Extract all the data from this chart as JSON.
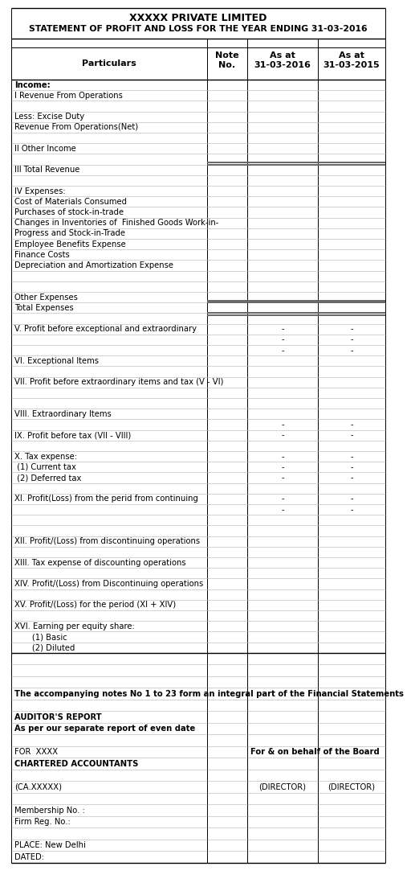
{
  "title1": "XXXXX PRIVATE LIMITED",
  "title2": "STATEMENT OF PROFIT AND LOSS FOR THE YEAR ENDING 31-03-2016",
  "rows": [
    {
      "text": "Income:",
      "bold": true,
      "c3": "",
      "c4": "",
      "dbl_above": false,
      "dbl_below": false
    },
    {
      "text": "I Revenue From Operations",
      "bold": false,
      "c3": "",
      "c4": "",
      "dbl_above": false,
      "dbl_below": false
    },
    {
      "text": "",
      "bold": false,
      "c3": "",
      "c4": "",
      "dbl_above": false,
      "dbl_below": false
    },
    {
      "text": "Less: Excise Duty",
      "bold": false,
      "c3": "",
      "c4": "",
      "dbl_above": false,
      "dbl_below": false
    },
    {
      "text": "Revenue From Operations(Net)",
      "bold": false,
      "c3": "",
      "c4": "",
      "dbl_above": false,
      "dbl_below": false
    },
    {
      "text": "",
      "bold": false,
      "c3": "",
      "c4": "",
      "dbl_above": false,
      "dbl_below": false
    },
    {
      "text": "II Other Income",
      "bold": false,
      "c3": "",
      "c4": "",
      "dbl_above": false,
      "dbl_below": false
    },
    {
      "text": "",
      "bold": false,
      "c3": "",
      "c4": "",
      "dbl_above": false,
      "dbl_below": false
    },
    {
      "text": "III Total Revenue",
      "bold": false,
      "c3": "",
      "c4": "",
      "dbl_above": true,
      "dbl_below": false
    },
    {
      "text": "",
      "bold": false,
      "c3": "",
      "c4": "",
      "dbl_above": false,
      "dbl_below": false
    },
    {
      "text": "IV Expenses:",
      "bold": false,
      "c3": "",
      "c4": "",
      "dbl_above": false,
      "dbl_below": false
    },
    {
      "text": "Cost of Materials Consumed",
      "bold": false,
      "c3": "",
      "c4": "",
      "dbl_above": false,
      "dbl_below": false
    },
    {
      "text": "Purchases of stock-in-trade",
      "bold": false,
      "c3": "",
      "c4": "",
      "dbl_above": false,
      "dbl_below": false
    },
    {
      "text": "Changes in Inventories of  Finished Goods Work-in-",
      "bold": false,
      "c3": "",
      "c4": "",
      "dbl_above": false,
      "dbl_below": false
    },
    {
      "text": "Progress and Stock-in-Trade",
      "bold": false,
      "c3": "",
      "c4": "",
      "dbl_above": false,
      "dbl_below": false
    },
    {
      "text": "Employee Benefits Expense",
      "bold": false,
      "c3": "",
      "c4": "",
      "dbl_above": false,
      "dbl_below": false
    },
    {
      "text": "Finance Costs",
      "bold": false,
      "c3": "",
      "c4": "",
      "dbl_above": false,
      "dbl_below": false
    },
    {
      "text": "Depreciation and Amortization Expense",
      "bold": false,
      "c3": "",
      "c4": "",
      "dbl_above": false,
      "dbl_below": false
    },
    {
      "text": "",
      "bold": false,
      "c3": "",
      "c4": "",
      "dbl_above": false,
      "dbl_below": false
    },
    {
      "text": "",
      "bold": false,
      "c3": "",
      "c4": "",
      "dbl_above": false,
      "dbl_below": false
    },
    {
      "text": "Other Expenses",
      "bold": false,
      "c3": "",
      "c4": "",
      "dbl_above": false,
      "dbl_below": false
    },
    {
      "text": "Total Expenses",
      "bold": false,
      "c3": "",
      "c4": "",
      "dbl_above": true,
      "dbl_below": true
    },
    {
      "text": "",
      "bold": false,
      "c3": "",
      "c4": "",
      "dbl_above": false,
      "dbl_below": false
    },
    {
      "text": "V. Profit before exceptional and extraordinary",
      "bold": false,
      "c3": "-",
      "c4": "-",
      "dbl_above": false,
      "dbl_below": false
    },
    {
      "text": "",
      "bold": false,
      "c3": "-",
      "c4": "-",
      "dbl_above": false,
      "dbl_below": false
    },
    {
      "text": "",
      "bold": false,
      "c3": "-",
      "c4": "-",
      "dbl_above": false,
      "dbl_below": false
    },
    {
      "text": "VI. Exceptional Items",
      "bold": false,
      "c3": "",
      "c4": "",
      "dbl_above": false,
      "dbl_below": false
    },
    {
      "text": "",
      "bold": false,
      "c3": "",
      "c4": "",
      "dbl_above": false,
      "dbl_below": false
    },
    {
      "text": "VII. Profit before extraordinary items and tax (V - VI)",
      "bold": false,
      "c3": "",
      "c4": "",
      "dbl_above": false,
      "dbl_below": false
    },
    {
      "text": "",
      "bold": false,
      "c3": "",
      "c4": "",
      "dbl_above": false,
      "dbl_below": false
    },
    {
      "text": "",
      "bold": false,
      "c3": "",
      "c4": "",
      "dbl_above": false,
      "dbl_below": false
    },
    {
      "text": "VIII. Extraordinary Items",
      "bold": false,
      "c3": "",
      "c4": "",
      "dbl_above": false,
      "dbl_below": false
    },
    {
      "text": "",
      "bold": false,
      "c3": "-",
      "c4": "-",
      "dbl_above": false,
      "dbl_below": false
    },
    {
      "text": "IX. Profit before tax (VII - VIII)",
      "bold": false,
      "c3": "-",
      "c4": "-",
      "dbl_above": false,
      "dbl_below": false
    },
    {
      "text": "",
      "bold": false,
      "c3": "",
      "c4": "",
      "dbl_above": false,
      "dbl_below": false
    },
    {
      "text": "X. Tax expense:",
      "bold": false,
      "c3": "-",
      "c4": "-",
      "dbl_above": false,
      "dbl_below": false
    },
    {
      "text": " (1) Current tax",
      "bold": false,
      "c3": "-",
      "c4": "-",
      "dbl_above": false,
      "dbl_below": false
    },
    {
      "text": " (2) Deferred tax",
      "bold": false,
      "c3": "-",
      "c4": "-",
      "dbl_above": false,
      "dbl_below": false
    },
    {
      "text": "",
      "bold": false,
      "c3": "",
      "c4": "",
      "dbl_above": false,
      "dbl_below": false
    },
    {
      "text": "XI. Profit(Loss) from the perid from continuing",
      "bold": false,
      "c3": "-",
      "c4": "-",
      "dbl_above": false,
      "dbl_below": false
    },
    {
      "text": "",
      "bold": false,
      "c3": "-",
      "c4": "-",
      "dbl_above": false,
      "dbl_below": false
    },
    {
      "text": "",
      "bold": false,
      "c3": "",
      "c4": "",
      "dbl_above": false,
      "dbl_below": false
    },
    {
      "text": "",
      "bold": false,
      "c3": "",
      "c4": "",
      "dbl_above": false,
      "dbl_below": false
    },
    {
      "text": "XII. Profit/(Loss) from discontinuing operations",
      "bold": false,
      "c3": "",
      "c4": "",
      "dbl_above": false,
      "dbl_below": false
    },
    {
      "text": "",
      "bold": false,
      "c3": "",
      "c4": "",
      "dbl_above": false,
      "dbl_below": false
    },
    {
      "text": "XIII. Tax expense of discounting operations",
      "bold": false,
      "c3": "",
      "c4": "",
      "dbl_above": false,
      "dbl_below": false
    },
    {
      "text": "",
      "bold": false,
      "c3": "",
      "c4": "",
      "dbl_above": false,
      "dbl_below": false
    },
    {
      "text": "XIV. Profit/(Loss) from Discontinuing operations",
      "bold": false,
      "c3": "",
      "c4": "",
      "dbl_above": false,
      "dbl_below": false
    },
    {
      "text": "",
      "bold": false,
      "c3": "",
      "c4": "",
      "dbl_above": false,
      "dbl_below": false
    },
    {
      "text": "XV. Profit/(Loss) for the period (XI + XIV)",
      "bold": false,
      "c3": "",
      "c4": "",
      "dbl_above": false,
      "dbl_below": false
    },
    {
      "text": "",
      "bold": false,
      "c3": "",
      "c4": "",
      "dbl_above": false,
      "dbl_below": false
    },
    {
      "text": "XVI. Earning per equity share:",
      "bold": false,
      "c3": "",
      "c4": "",
      "dbl_above": false,
      "dbl_below": false
    },
    {
      "text": "       (1) Basic",
      "bold": false,
      "c3": "",
      "c4": "",
      "dbl_above": false,
      "dbl_below": false
    },
    {
      "text": "       (2) Diluted",
      "bold": false,
      "c3": "",
      "c4": "",
      "dbl_above": false,
      "dbl_below": false
    }
  ],
  "footer_rows": [
    {
      "text": "",
      "bold": false,
      "rt": "",
      "rt_bold": false,
      "rt1": "",
      "rt2": ""
    },
    {
      "text": "",
      "bold": false,
      "rt": "",
      "rt_bold": false,
      "rt1": "",
      "rt2": ""
    },
    {
      "text": "",
      "bold": false,
      "rt": "",
      "rt_bold": false,
      "rt1": "",
      "rt2": ""
    },
    {
      "text": "The accompanying notes No 1 to 23 form an integral part of the Financial Statements",
      "bold": true,
      "rt": "",
      "rt_bold": false,
      "rt1": "",
      "rt2": ""
    },
    {
      "text": "",
      "bold": false,
      "rt": "",
      "rt_bold": false,
      "rt1": "",
      "rt2": ""
    },
    {
      "text": "AUDITOR'S REPORT",
      "bold": true,
      "rt": "",
      "rt_bold": false,
      "rt1": "",
      "rt2": ""
    },
    {
      "text": "As per our separate report of even date",
      "bold": true,
      "rt": "",
      "rt_bold": false,
      "rt1": "",
      "rt2": ""
    },
    {
      "text": "",
      "bold": false,
      "rt": "",
      "rt_bold": false,
      "rt1": "",
      "rt2": ""
    },
    {
      "text": "FOR  XXXX",
      "bold": false,
      "rt": "For & on behalf of the Board",
      "rt_bold": true,
      "rt1": "",
      "rt2": ""
    },
    {
      "text": "CHARTERED ACCOUNTANTS",
      "bold": true,
      "rt": "",
      "rt_bold": false,
      "rt1": "",
      "rt2": ""
    },
    {
      "text": "",
      "bold": false,
      "rt": "",
      "rt_bold": false,
      "rt1": "",
      "rt2": ""
    },
    {
      "text": "(CA.XXXXX)",
      "bold": false,
      "rt": "",
      "rt_bold": false,
      "rt1": "(DIRECTOR)",
      "rt2": "(DIRECTOR)"
    },
    {
      "text": "",
      "bold": false,
      "rt": "",
      "rt_bold": false,
      "rt1": "",
      "rt2": ""
    },
    {
      "text": "Membership No. :",
      "bold": false,
      "rt": "",
      "rt_bold": false,
      "rt1": "",
      "rt2": ""
    },
    {
      "text": "Firm Reg. No.:",
      "bold": false,
      "rt": "",
      "rt_bold": false,
      "rt1": "",
      "rt2": ""
    },
    {
      "text": "",
      "bold": false,
      "rt": "",
      "rt_bold": false,
      "rt1": "",
      "rt2": ""
    },
    {
      "text": "PLACE: New Delhi",
      "bold": false,
      "rt": "",
      "rt_bold": false,
      "rt1": "",
      "rt2": ""
    },
    {
      "text": "DATED:",
      "bold": false,
      "rt": "",
      "rt_bold": false,
      "rt1": "",
      "rt2": ""
    }
  ],
  "bg_color": "#ffffff",
  "gray_line_color": "#bbbbbb",
  "dark_line_color": "#666666",
  "font_size": 7.2,
  "hdr_font_size": 8.0,
  "title_font_size": 9.0
}
